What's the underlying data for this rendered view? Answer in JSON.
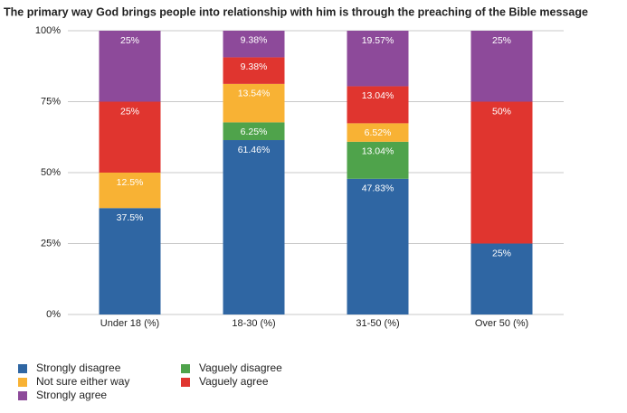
{
  "chart_data": {
    "type": "stacked-bar",
    "title": "The primary way God brings people into relationship with him is through the preaching of the Bible message",
    "categories": [
      "Under 18 (%)",
      "18-30 (%)",
      "31-50 (%)",
      "Over 50 (%)"
    ],
    "series": [
      {
        "name": "Strongly disagree",
        "color": "#2f66a3",
        "values": [
          37.5,
          61.46,
          47.83,
          25
        ],
        "value_labels": [
          "37.5%",
          "61.46%",
          "47.83%",
          "25%"
        ]
      },
      {
        "name": "Vaguely disagree",
        "color": "#4fa34b",
        "values": [
          0,
          6.25,
          13.04,
          0
        ],
        "value_labels": [
          null,
          "6.25%",
          "13.04%",
          null
        ]
      },
      {
        "name": "Not sure either way",
        "color": "#f8b234",
        "values": [
          12.5,
          13.54,
          6.52,
          0
        ],
        "value_labels": [
          "12.5%",
          "13.54%",
          "6.52%",
          null
        ]
      },
      {
        "name": "Vaguely agree",
        "color": "#e0352f",
        "values": [
          25,
          9.38,
          13.04,
          50
        ],
        "value_labels": [
          "25%",
          "9.38%",
          "13.04%",
          "50%"
        ]
      },
      {
        "name": "Strongly agree",
        "color": "#8d4a9a",
        "values": [
          25,
          9.38,
          19.57,
          25
        ],
        "value_labels": [
          "25%",
          "9.38%",
          "19.57%",
          "25%"
        ]
      }
    ],
    "ylim": [
      0,
      100
    ],
    "yticks": [
      {
        "value": 0,
        "label": "0%"
      },
      {
        "value": 25,
        "label": "25%"
      },
      {
        "value": 50,
        "label": "50%"
      },
      {
        "value": 75,
        "label": "75%"
      },
      {
        "value": 100,
        "label": "100%"
      }
    ],
    "grid": true
  }
}
